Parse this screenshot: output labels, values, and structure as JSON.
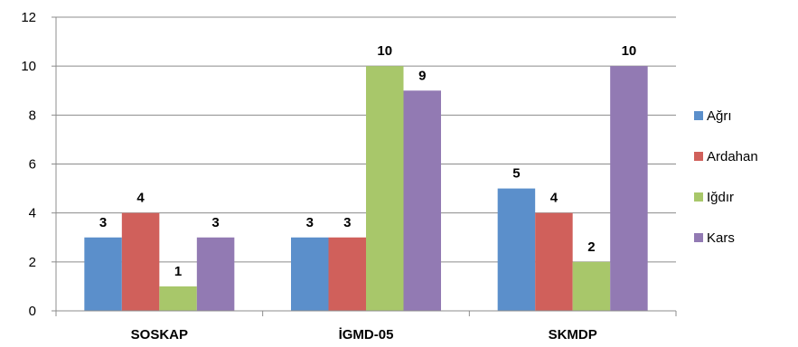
{
  "chart_data": {
    "type": "bar",
    "categories": [
      "SOSKAP",
      "İGMD-05",
      "SKMDP"
    ],
    "series": [
      {
        "name": "Ağrı",
        "color": "#5B8FCB",
        "values": [
          3,
          3,
          5
        ]
      },
      {
        "name": "Ardahan",
        "color": "#D0605B",
        "values": [
          4,
          3,
          4
        ]
      },
      {
        "name": "Iğdır",
        "color": "#A8C76A",
        "values": [
          1,
          10,
          2
        ]
      },
      {
        "name": "Kars",
        "color": "#927AB3",
        "values": [
          3,
          9,
          10
        ]
      }
    ],
    "yticks": [
      "0",
      "2",
      "4",
      "6",
      "8",
      "10",
      "12"
    ],
    "ylim": [
      0,
      12
    ],
    "grid": true,
    "legend_position": "right",
    "data_labels": true
  }
}
